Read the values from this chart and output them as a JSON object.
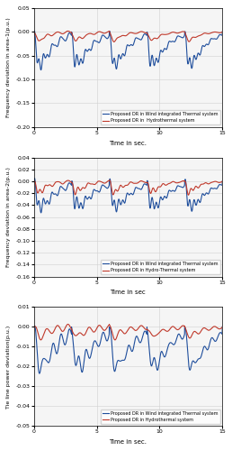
{
  "title": "",
  "subplot1": {
    "ylabel": "Frequency deviation in area-1(p.u.)",
    "xlabel": "Time in sec.",
    "ylim": [
      -0.2,
      0.05
    ],
    "yticks": [
      0.05,
      0,
      -0.05,
      -0.1,
      -0.15,
      -0.2
    ],
    "xlim": [
      0,
      15
    ],
    "xticks": [
      0,
      5,
      10,
      15
    ],
    "legend": [
      "Proposed DR in Wind integrated Thermal system",
      "Proposed DR in  Hydrothermal system"
    ]
  },
  "subplot2": {
    "ylabel": "Frequency deviation in area-2(p.u.)",
    "xlabel": "Time in sec",
    "ylim": [
      -0.16,
      0.04
    ],
    "yticks": [
      0.04,
      0.02,
      0,
      -0.02,
      -0.04,
      -0.06,
      -0.08,
      -0.1,
      -0.12,
      -0.14,
      -0.16
    ],
    "xlim": [
      0,
      15
    ],
    "xticks": [
      0,
      5,
      10,
      15
    ],
    "legend": [
      "Proposed DR in Wind integrated Thermal system",
      "Proposed DR in Hydro-Thermal system"
    ]
  },
  "subplot3": {
    "ylabel": "Tie line power deviation(p.u.)",
    "xlabel": "Time in sec.",
    "ylim": [
      -0.05,
      0.01
    ],
    "yticks": [
      0.01,
      0,
      -0.01,
      -0.02,
      -0.03,
      -0.04,
      -0.05
    ],
    "xlim": [
      0,
      15
    ],
    "xticks": [
      0,
      5,
      10,
      15
    ],
    "legend": [
      "Proposed DR in Wind integrated Thermal system",
      "Proposed DR in Hydrothermal system"
    ]
  },
  "blue_color": "#1f4e9c",
  "red_color": "#c0392b",
  "background": "#f5f5f5",
  "grid_color": "#d0d0d0"
}
